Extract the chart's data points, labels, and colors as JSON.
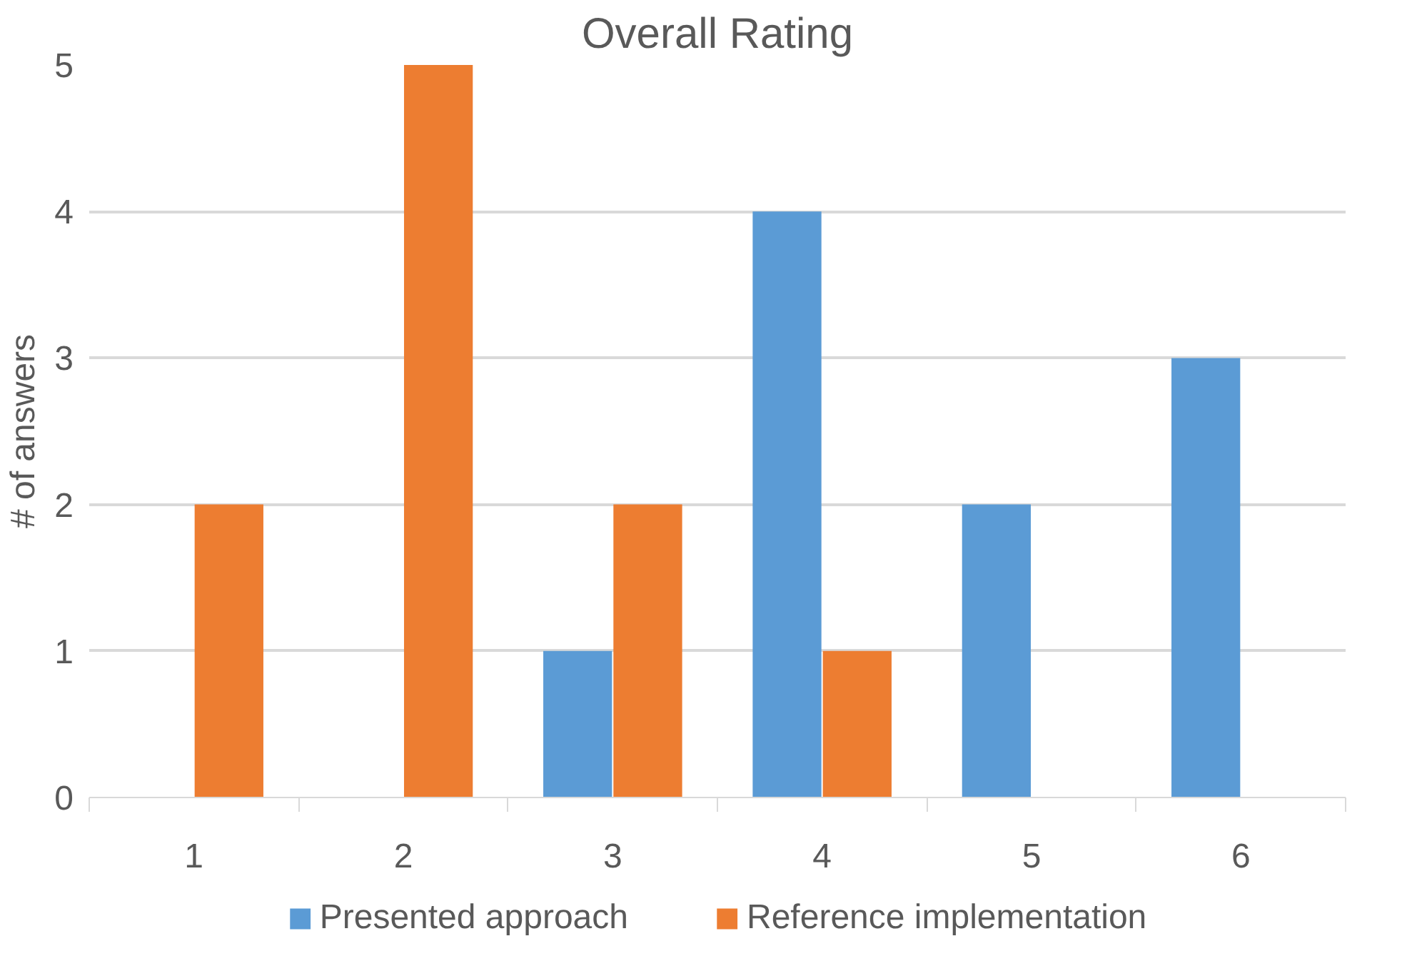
{
  "chart_data": {
    "type": "bar",
    "title": "Overall Rating",
    "ylabel": "# of answers",
    "categories": [
      "1",
      "2",
      "3",
      "4",
      "5",
      "6"
    ],
    "series": [
      {
        "name": "Presented approach",
        "color": "#5b9bd5",
        "values": [
          0,
          0,
          1,
          4,
          2,
          3
        ]
      },
      {
        "name": "Reference implementation",
        "color": "#ed7d31",
        "values": [
          2,
          5,
          2,
          1,
          0,
          0
        ]
      }
    ],
    "ylim": [
      0,
      5
    ],
    "yticks": [
      0,
      1,
      2,
      3,
      4,
      5
    ],
    "grid": "y",
    "legend": "bottom"
  }
}
